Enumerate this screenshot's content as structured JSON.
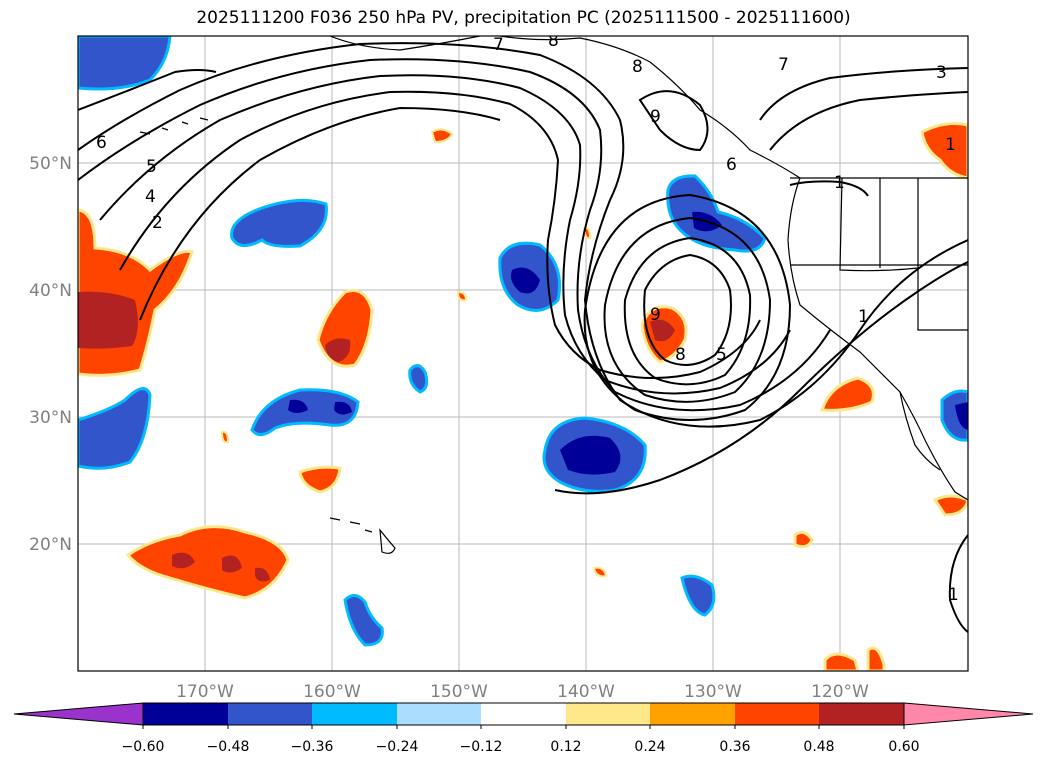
{
  "title": "2025111200 F036 250 hPa PV, precipitation PC (2025111500 - 2025111600)",
  "lat_labels": [
    "50°N",
    "40°N",
    "30°N",
    "20°N"
  ],
  "lon_labels": [
    "170°W",
    "160°W",
    "150°W",
    "140°W",
    "130°W",
    "120°W"
  ],
  "contour_labels": [
    "7",
    "8",
    "8",
    "9",
    "9",
    "8",
    "5",
    "7",
    "6",
    "3",
    "1",
    "1",
    "1",
    "6",
    "5",
    "4",
    "2",
    "1"
  ],
  "colorbar": {
    "colors": [
      "#9933cc",
      "#000099",
      "#3355cc",
      "#00bbff",
      "#aaddff",
      "#ffffff",
      "#ffe88a",
      "#ffa200",
      "#ff4400",
      "#b22222",
      "#ff88aa"
    ],
    "ticks": [
      "−0.60",
      "−0.48",
      "−0.36",
      "−0.24",
      "−0.12",
      "0.12",
      "0.24",
      "0.36",
      "0.48",
      "0.60"
    ]
  },
  "legend_colors": {
    "neg_strong": "#000099",
    "neg_mid": "#3355cc",
    "neg_light": "#00bbff",
    "pos_light": "#ffe88a",
    "pos_mid": "#ff4400",
    "pos_strong": "#b22222"
  }
}
